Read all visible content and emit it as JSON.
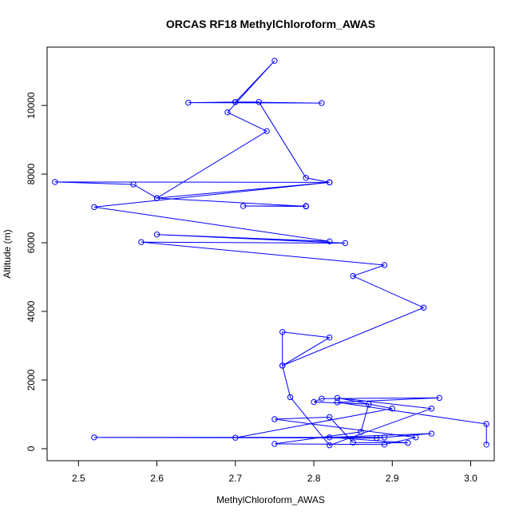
{
  "chart_data": {
    "type": "line",
    "title": "ORCAS RF18 MethylChloroform_AWAS",
    "xlabel": "MethylChloroform_AWAS",
    "ylabel": "Altitude (m)",
    "xlim": [
      2.46,
      3.03
    ],
    "ylim": [
      -350,
      11700
    ],
    "xticks": [
      2.5,
      2.6,
      2.7,
      2.8,
      2.9,
      3.0
    ],
    "xtick_labels": [
      "2.5",
      "2.6",
      "2.7",
      "2.8",
      "2.9",
      "3.0"
    ],
    "yticks": [
      0,
      2000,
      4000,
      6000,
      8000,
      10000
    ],
    "ytick_labels": [
      "0",
      "2000",
      "4000",
      "6000",
      "8000",
      "10000"
    ],
    "grid": false,
    "series": [
      {
        "name": "MethylChloroform_AWAS",
        "color": "#0000ff",
        "x": [
          3.02,
          3.02,
          2.83,
          2.96,
          2.81,
          2.8,
          2.87,
          2.86,
          2.75,
          2.89,
          2.93,
          2.75,
          2.82,
          2.85,
          2.92,
          2.82,
          2.95,
          2.88,
          2.52,
          2.89,
          2.7,
          2.9,
          2.83,
          2.95,
          2.82,
          2.77,
          2.76,
          2.76,
          2.82,
          2.76,
          2.94,
          2.85,
          2.89,
          2.58,
          2.84,
          2.6,
          2.82,
          2.52,
          2.82,
          2.47,
          2.57,
          2.6,
          2.82,
          2.79,
          2.73,
          2.7,
          2.64,
          2.81,
          2.7,
          2.75,
          2.69,
          2.74,
          2.6,
          2.79,
          2.71,
          2.79
        ],
        "y": [
          120,
          720,
          1350,
          1480,
          1460,
          1360,
          1300,
          490,
          140,
          120,
          330,
          860,
          920,
          180,
          170,
          330,
          440,
          310,
          330,
          330,
          320,
          1170,
          1480,
          1170,
          100,
          1500,
          2420,
          3400,
          3240,
          2420,
          4110,
          5030,
          5350,
          6020,
          5990,
          6240,
          6040,
          7040,
          7760,
          7770,
          7700,
          7300,
          7760,
          7890,
          10100,
          10100,
          10080,
          10070,
          10100,
          11300,
          9800,
          9250,
          7300,
          7060,
          7070,
          7070
        ]
      }
    ]
  }
}
